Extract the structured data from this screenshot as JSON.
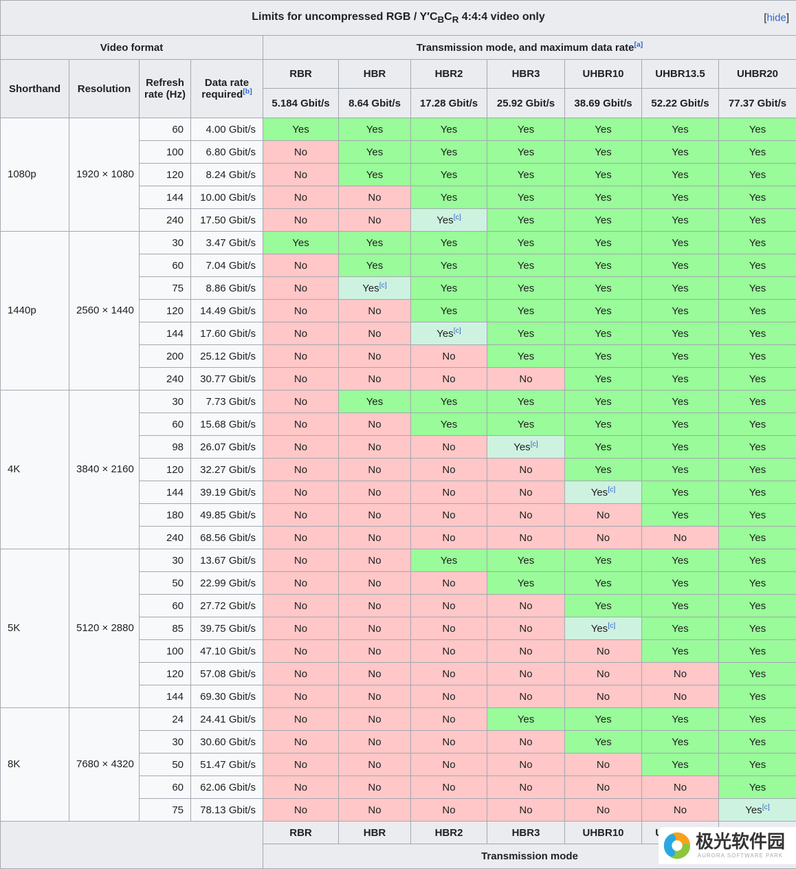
{
  "colors": {
    "yes_bg": "#99fb99",
    "no_bg": "#ffc7c7",
    "partial_bg": "#cef2e0",
    "header_bg": "#eaecf0",
    "border": "#a2a9b1",
    "link": "#3366cc"
  },
  "title": {
    "prefix": "Limits for uncompressed RGB / Y′C",
    "sub_b": "B",
    "mid": "C",
    "sub_r": "R",
    "suffix": " 4:4:4 video only",
    "hide_open": "[",
    "hide_label": "hide",
    "hide_close": "]"
  },
  "header": {
    "video_format": "Video format",
    "transmission": {
      "text": "Transmission mode, and maximum data rate",
      "footnote": "[a]"
    },
    "shorthand": "Shorthand",
    "resolution": "Resolution",
    "refresh": "Refresh rate (Hz)",
    "data_rate": {
      "text": "Data rate required",
      "footnote": "[b]"
    }
  },
  "modes": [
    {
      "name": "RBR",
      "rate": "5.184 Gbit/s"
    },
    {
      "name": "HBR",
      "rate": "8.64 Gbit/s"
    },
    {
      "name": "HBR2",
      "rate": "17.28 Gbit/s"
    },
    {
      "name": "HBR3",
      "rate": "25.92 Gbit/s"
    },
    {
      "name": "UHBR10",
      "rate": "38.69 Gbit/s"
    },
    {
      "name": "UHBR13.5",
      "rate": "52.22 Gbit/s"
    },
    {
      "name": "UHBR20",
      "rate": "77.37 Gbit/s"
    }
  ],
  "yes_label": "Yes",
  "no_label": "No",
  "partial_footnote": "[c]",
  "groups": [
    {
      "shorthand": "1080p",
      "resolution": "1920 × 1080",
      "rows": [
        {
          "refresh": "60",
          "data_rate": "4.00 Gbit/s",
          "support": [
            "yes",
            "yes",
            "yes",
            "yes",
            "yes",
            "yes",
            "yes"
          ]
        },
        {
          "refresh": "100",
          "data_rate": "6.80 Gbit/s",
          "support": [
            "no",
            "yes",
            "yes",
            "yes",
            "yes",
            "yes",
            "yes"
          ]
        },
        {
          "refresh": "120",
          "data_rate": "8.24 Gbit/s",
          "support": [
            "no",
            "yes",
            "yes",
            "yes",
            "yes",
            "yes",
            "yes"
          ]
        },
        {
          "refresh": "144",
          "data_rate": "10.00 Gbit/s",
          "support": [
            "no",
            "no",
            "yes",
            "yes",
            "yes",
            "yes",
            "yes"
          ]
        },
        {
          "refresh": "240",
          "data_rate": "17.50 Gbit/s",
          "support": [
            "no",
            "no",
            "yes-c",
            "yes",
            "yes",
            "yes",
            "yes"
          ]
        }
      ]
    },
    {
      "shorthand": "1440p",
      "resolution": "2560 × 1440",
      "rows": [
        {
          "refresh": "30",
          "data_rate": "3.47 Gbit/s",
          "support": [
            "yes",
            "yes",
            "yes",
            "yes",
            "yes",
            "yes",
            "yes"
          ]
        },
        {
          "refresh": "60",
          "data_rate": "7.04 Gbit/s",
          "support": [
            "no",
            "yes",
            "yes",
            "yes",
            "yes",
            "yes",
            "yes"
          ]
        },
        {
          "refresh": "75",
          "data_rate": "8.86 Gbit/s",
          "support": [
            "no",
            "yes-c",
            "yes",
            "yes",
            "yes",
            "yes",
            "yes"
          ]
        },
        {
          "refresh": "120",
          "data_rate": "14.49 Gbit/s",
          "support": [
            "no",
            "no",
            "yes",
            "yes",
            "yes",
            "yes",
            "yes"
          ]
        },
        {
          "refresh": "144",
          "data_rate": "17.60 Gbit/s",
          "support": [
            "no",
            "no",
            "yes-c",
            "yes",
            "yes",
            "yes",
            "yes"
          ]
        },
        {
          "refresh": "200",
          "data_rate": "25.12 Gbit/s",
          "support": [
            "no",
            "no",
            "no",
            "yes",
            "yes",
            "yes",
            "yes"
          ]
        },
        {
          "refresh": "240",
          "data_rate": "30.77 Gbit/s",
          "support": [
            "no",
            "no",
            "no",
            "no",
            "yes",
            "yes",
            "yes"
          ]
        }
      ]
    },
    {
      "shorthand": "4K",
      "resolution": "3840 × 2160",
      "rows": [
        {
          "refresh": "30",
          "data_rate": "7.73 Gbit/s",
          "support": [
            "no",
            "yes",
            "yes",
            "yes",
            "yes",
            "yes",
            "yes"
          ]
        },
        {
          "refresh": "60",
          "data_rate": "15.68 Gbit/s",
          "support": [
            "no",
            "no",
            "yes",
            "yes",
            "yes",
            "yes",
            "yes"
          ]
        },
        {
          "refresh": "98",
          "data_rate": "26.07 Gbit/s",
          "support": [
            "no",
            "no",
            "no",
            "yes-c",
            "yes",
            "yes",
            "yes"
          ]
        },
        {
          "refresh": "120",
          "data_rate": "32.27 Gbit/s",
          "support": [
            "no",
            "no",
            "no",
            "no",
            "yes",
            "yes",
            "yes"
          ]
        },
        {
          "refresh": "144",
          "data_rate": "39.19 Gbit/s",
          "support": [
            "no",
            "no",
            "no",
            "no",
            "yes-c",
            "yes",
            "yes"
          ]
        },
        {
          "refresh": "180",
          "data_rate": "49.85 Gbit/s",
          "support": [
            "no",
            "no",
            "no",
            "no",
            "no",
            "yes",
            "yes"
          ]
        },
        {
          "refresh": "240",
          "data_rate": "68.56 Gbit/s",
          "support": [
            "no",
            "no",
            "no",
            "no",
            "no",
            "no",
            "yes"
          ]
        }
      ]
    },
    {
      "shorthand": "5K",
      "resolution": "5120 × 2880",
      "rows": [
        {
          "refresh": "30",
          "data_rate": "13.67 Gbit/s",
          "support": [
            "no",
            "no",
            "yes",
            "yes",
            "yes",
            "yes",
            "yes"
          ]
        },
        {
          "refresh": "50",
          "data_rate": "22.99 Gbit/s",
          "support": [
            "no",
            "no",
            "no",
            "yes",
            "yes",
            "yes",
            "yes"
          ]
        },
        {
          "refresh": "60",
          "data_rate": "27.72 Gbit/s",
          "support": [
            "no",
            "no",
            "no",
            "no",
            "yes",
            "yes",
            "yes"
          ]
        },
        {
          "refresh": "85",
          "data_rate": "39.75 Gbit/s",
          "support": [
            "no",
            "no",
            "no",
            "no",
            "yes-c",
            "yes",
            "yes"
          ]
        },
        {
          "refresh": "100",
          "data_rate": "47.10 Gbit/s",
          "support": [
            "no",
            "no",
            "no",
            "no",
            "no",
            "yes",
            "yes"
          ]
        },
        {
          "refresh": "120",
          "data_rate": "57.08 Gbit/s",
          "support": [
            "no",
            "no",
            "no",
            "no",
            "no",
            "no",
            "yes"
          ]
        },
        {
          "refresh": "144",
          "data_rate": "69.30 Gbit/s",
          "support": [
            "no",
            "no",
            "no",
            "no",
            "no",
            "no",
            "yes"
          ]
        }
      ]
    },
    {
      "shorthand": "8K",
      "resolution": "7680 × 4320",
      "rows": [
        {
          "refresh": "24",
          "data_rate": "24.41 Gbit/s",
          "support": [
            "no",
            "no",
            "no",
            "yes",
            "yes",
            "yes",
            "yes"
          ]
        },
        {
          "refresh": "30",
          "data_rate": "30.60 Gbit/s",
          "support": [
            "no",
            "no",
            "no",
            "no",
            "yes",
            "yes",
            "yes"
          ]
        },
        {
          "refresh": "50",
          "data_rate": "51.47 Gbit/s",
          "support": [
            "no",
            "no",
            "no",
            "no",
            "no",
            "yes",
            "yes"
          ]
        },
        {
          "refresh": "60",
          "data_rate": "62.06 Gbit/s",
          "support": [
            "no",
            "no",
            "no",
            "no",
            "no",
            "no",
            "yes"
          ]
        },
        {
          "refresh": "75",
          "data_rate": "78.13 Gbit/s",
          "support": [
            "no",
            "no",
            "no",
            "no",
            "no",
            "no",
            "yes-c"
          ]
        }
      ]
    }
  ],
  "footer": {
    "label": "Transmission mode"
  },
  "watermark": {
    "text": "极光软件园",
    "subtext": "AURORA SOFTWARE PARK"
  }
}
